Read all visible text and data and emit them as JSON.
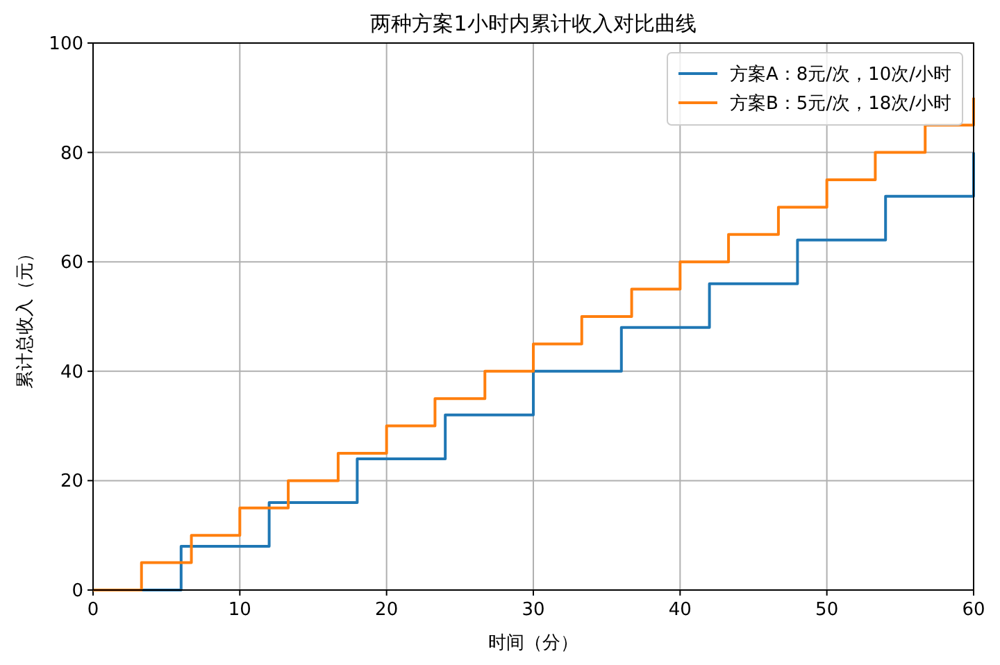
{
  "chart_data": {
    "type": "step",
    "title": "两种方案1小时内累计收入对比曲线",
    "xlabel": "时间（分）",
    "ylabel": "累计总收入（元）",
    "series": [
      {
        "name": "方案A：8元/次，10次/小时",
        "color": "#1f77b4",
        "x": [
          0,
          6,
          12,
          18,
          24,
          30,
          36,
          42,
          48,
          54,
          60
        ],
        "values": [
          0,
          8,
          16,
          24,
          32,
          40,
          48,
          56,
          64,
          72,
          80
        ]
      },
      {
        "name": "方案B：5元/次，18次/小时",
        "color": "#ff7f0e",
        "x": [
          0,
          3.3,
          6.7,
          10,
          13.3,
          16.7,
          20,
          23.3,
          26.7,
          30,
          33.3,
          36.7,
          40,
          43.3,
          46.7,
          50,
          53.3,
          56.7,
          60
        ],
        "values": [
          0,
          5,
          10,
          15,
          20,
          25,
          30,
          35,
          40,
          45,
          50,
          55,
          60,
          65,
          70,
          75,
          80,
          85,
          90
        ]
      }
    ],
    "xlim": [
      0,
      60
    ],
    "ylim": [
      0,
      100
    ],
    "xticks": [
      0,
      10,
      20,
      30,
      40,
      50,
      60
    ],
    "yticks": [
      0,
      20,
      40,
      60,
      80,
      100
    ],
    "grid": true,
    "legend": "top right"
  }
}
